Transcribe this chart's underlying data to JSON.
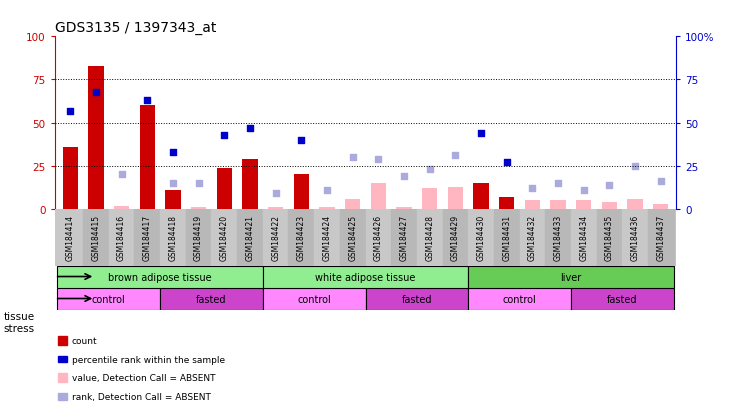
{
  "title": "GDS3135 / 1397343_at",
  "samples": [
    "GSM184414",
    "GSM184415",
    "GSM184416",
    "GSM184417",
    "GSM184418",
    "GSM184419",
    "GSM184420",
    "GSM184421",
    "GSM184422",
    "GSM184423",
    "GSM184424",
    "GSM184425",
    "GSM184426",
    "GSM184427",
    "GSM184428",
    "GSM184429",
    "GSM184430",
    "GSM184431",
    "GSM184432",
    "GSM184433",
    "GSM184434",
    "GSM184435",
    "GSM184436",
    "GSM184437"
  ],
  "count": [
    36,
    83,
    null,
    60,
    11,
    null,
    24,
    29,
    null,
    20,
    null,
    null,
    null,
    null,
    null,
    null,
    15,
    7,
    null,
    null,
    null,
    null,
    null,
    null
  ],
  "count_absent": [
    null,
    null,
    2,
    null,
    null,
    1,
    null,
    null,
    1,
    null,
    1,
    6,
    15,
    1,
    12,
    13,
    null,
    null,
    5,
    5,
    5,
    4,
    6,
    3
  ],
  "rank": [
    57,
    68,
    null,
    63,
    33,
    null,
    43,
    47,
    null,
    40,
    null,
    null,
    null,
    null,
    null,
    null,
    44,
    27,
    null,
    null,
    null,
    null,
    null,
    null
  ],
  "rank_absent": [
    null,
    null,
    20,
    null,
    15,
    15,
    null,
    null,
    9,
    null,
    11,
    30,
    29,
    19,
    23,
    31,
    null,
    null,
    12,
    15,
    11,
    14,
    25,
    16
  ],
  "tissue_groups": [
    {
      "label": "brown adipose tissue",
      "start": 0,
      "end": 7,
      "color": "#90EE90"
    },
    {
      "label": "white adipose tissue",
      "start": 8,
      "end": 15,
      "color": "#90EE90"
    },
    {
      "label": "liver",
      "start": 16,
      "end": 23,
      "color": "#66CC55"
    }
  ],
  "stress_groups": [
    {
      "label": "control",
      "start": 0,
      "end": 3
    },
    {
      "label": "fasted",
      "start": 4,
      "end": 7
    },
    {
      "label": "control",
      "start": 8,
      "end": 11
    },
    {
      "label": "fasted",
      "start": 12,
      "end": 15
    },
    {
      "label": "control",
      "start": 16,
      "end": 19
    },
    {
      "label": "fasted",
      "start": 20,
      "end": 23
    }
  ],
  "stress_colors": {
    "control": "#FF88FF",
    "fasted": "#CC44CC"
  },
  "ylim": [
    0,
    100
  ],
  "bar_color": "#CC0000",
  "bar_absent_color": "#FFB6C1",
  "rank_color": "#0000CC",
  "rank_absent_color": "#AAAADD",
  "dotted_lines": [
    25,
    50,
    75
  ],
  "tick_label_bg": "#C8C8C8",
  "chart_bg": "#FFFFFF",
  "fig_bg": "#FFFFFF"
}
